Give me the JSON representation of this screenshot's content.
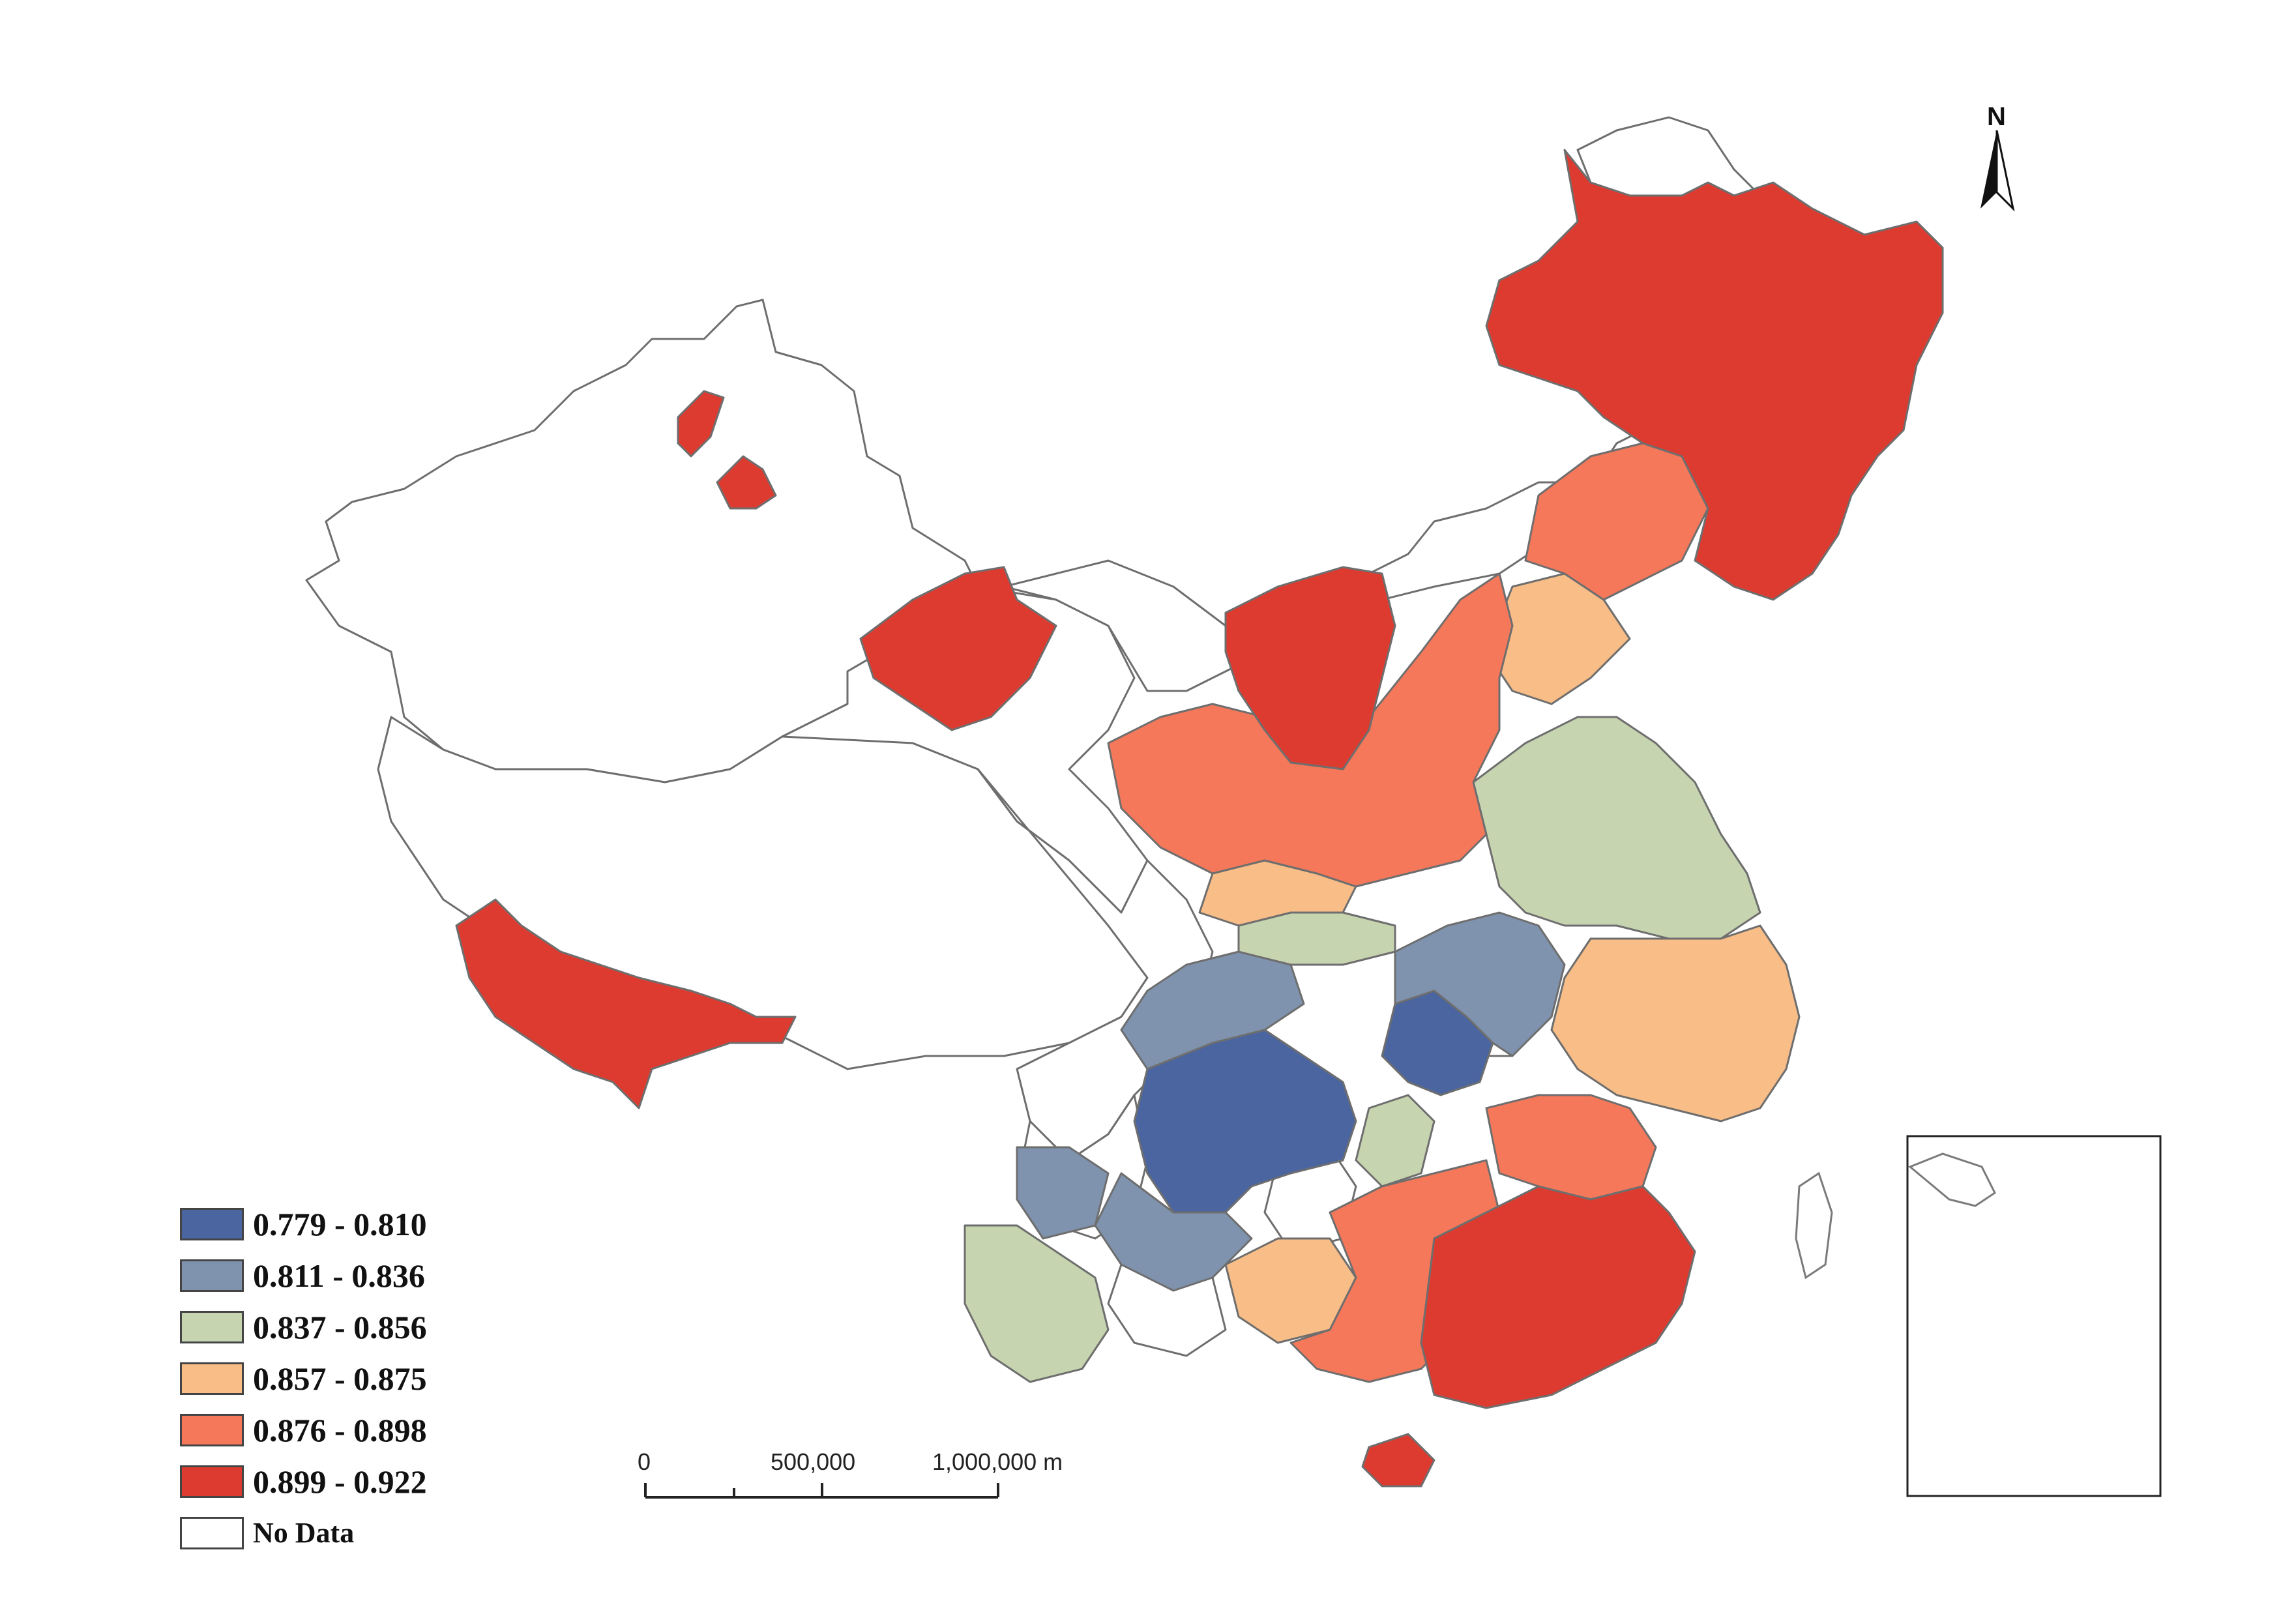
{
  "colors": {
    "c1": "#4a65a0",
    "c2": "#7f93ae",
    "c3": "#c7d4b0",
    "c4": "#f9bd87",
    "c5": "#f5785a",
    "c6": "#de3b30",
    "nodata": "#ffffff"
  },
  "legend": {
    "items": [
      {
        "label": "0.779 - 0.810",
        "color": "#4a65a0"
      },
      {
        "label": "0.811 - 0.836",
        "color": "#7f93ae"
      },
      {
        "label": "0.837 - 0.856",
        "color": "#c7d4b0"
      },
      {
        "label": "0.857 - 0.875",
        "color": "#f9bd87"
      },
      {
        "label": "0.876 - 0.898",
        "color": "#f5785a"
      },
      {
        "label": "0.899 - 0.922",
        "color": "#de3b30"
      }
    ],
    "nodata_label": "No Data"
  },
  "scale_bar": {
    "labels": [
      "0",
      "500,000",
      "1,000,000 m"
    ]
  },
  "north_arrow": {
    "label": "N",
    "icon": "north-arrow-icon"
  }
}
